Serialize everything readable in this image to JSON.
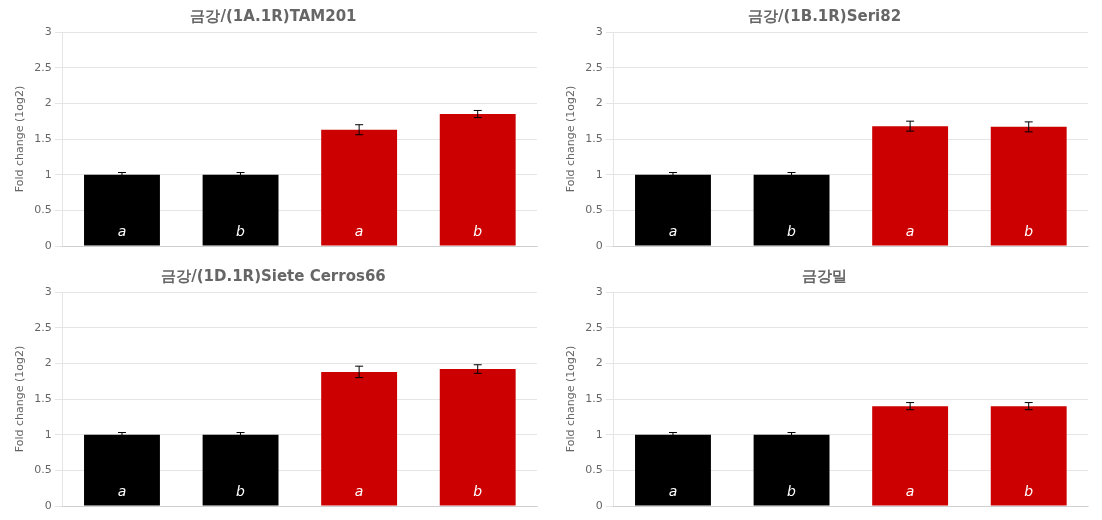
{
  "chart_data": [
    {
      "type": "bar",
      "title": "금강/(1A.1R)TAM201",
      "ylabel": "Fold change (1og2)",
      "categories": [
        null,
        null,
        null,
        null
      ],
      "values": [
        1.0,
        1.0,
        1.63,
        1.85
      ],
      "errors": [
        0.03,
        0.03,
        0.07,
        0.05
      ],
      "colors": [
        "#000000",
        "#000000",
        "#cc0000",
        "#cc0000"
      ],
      "ylim": [
        0,
        3
      ],
      "yticks": [
        0,
        0.5,
        1,
        1.5,
        2,
        2.5,
        3
      ],
      "grid": true,
      "tick_labels": "y",
      "annotations": [
        {
          "text": "a",
          "index": 0,
          "y": 0.1
        },
        {
          "text": "b",
          "index": 1,
          "y": 0.1
        },
        {
          "text": "a",
          "index": 2,
          "y": 0.1
        },
        {
          "text": "b",
          "index": 3,
          "y": 0.1
        }
      ]
    },
    {
      "type": "bar",
      "title": "금강/(1B.1R)Seri82",
      "ylabel": "Fold change (1og2)",
      "categories": [
        null,
        null,
        null,
        null
      ],
      "values": [
        1.0,
        1.0,
        1.68,
        1.67
      ],
      "errors": [
        0.03,
        0.03,
        0.07,
        0.07
      ],
      "colors": [
        "#000000",
        "#000000",
        "#cc0000",
        "#cc0000"
      ],
      "ylim": [
        0,
        3
      ],
      "yticks": [
        0,
        0.5,
        1,
        1.5,
        2,
        2.5,
        3
      ],
      "grid": true,
      "tick_labels": "y",
      "annotations": [
        {
          "text": "a",
          "index": 0,
          "y": 0.1
        },
        {
          "text": "b",
          "index": 1,
          "y": 0.1
        },
        {
          "text": "a",
          "index": 2,
          "y": 0.1
        },
        {
          "text": "b",
          "index": 3,
          "y": 0.1
        }
      ]
    },
    {
      "type": "bar",
      "title": "금강/(1D.1R)Siete Cerros66",
      "ylabel": "Fold change (1og2)",
      "categories": [
        null,
        null,
        null,
        null
      ],
      "values": [
        1.0,
        1.0,
        1.88,
        1.92
      ],
      "errors": [
        0.03,
        0.03,
        0.08,
        0.06
      ],
      "colors": [
        "#000000",
        "#000000",
        "#cc0000",
        "#cc0000"
      ],
      "ylim": [
        0,
        3
      ],
      "yticks": [
        0,
        0.5,
        1,
        1.5,
        2,
        2.5,
        3
      ],
      "grid": true,
      "tick_labels": "y",
      "annotations": [
        {
          "text": "a",
          "index": 0,
          "y": 0.1
        },
        {
          "text": "b",
          "index": 1,
          "y": 0.1
        },
        {
          "text": "a",
          "index": 2,
          "y": 0.1
        },
        {
          "text": "b",
          "index": 3,
          "y": 0.1
        }
      ]
    },
    {
      "type": "bar",
      "title": "금강밀",
      "ylabel": "Fold change (1og2)",
      "categories": [
        null,
        null,
        null,
        null
      ],
      "values": [
        1.0,
        1.0,
        1.4,
        1.4
      ],
      "errors": [
        0.03,
        0.03,
        0.05,
        0.05
      ],
      "colors": [
        "#000000",
        "#000000",
        "#cc0000",
        "#cc0000"
      ],
      "ylim": [
        0,
        3
      ],
      "yticks": [
        0,
        0.5,
        1,
        1.5,
        2,
        2.5,
        3
      ],
      "grid": true,
      "tick_labels": "y",
      "annotations": [
        {
          "text": "a",
          "index": 0,
          "y": 0.1
        },
        {
          "text": "b",
          "index": 1,
          "y": 0.1
        },
        {
          "text": "a",
          "index": 2,
          "y": 0.1
        },
        {
          "text": "b",
          "index": 3,
          "y": 0.1
        }
      ]
    }
  ]
}
